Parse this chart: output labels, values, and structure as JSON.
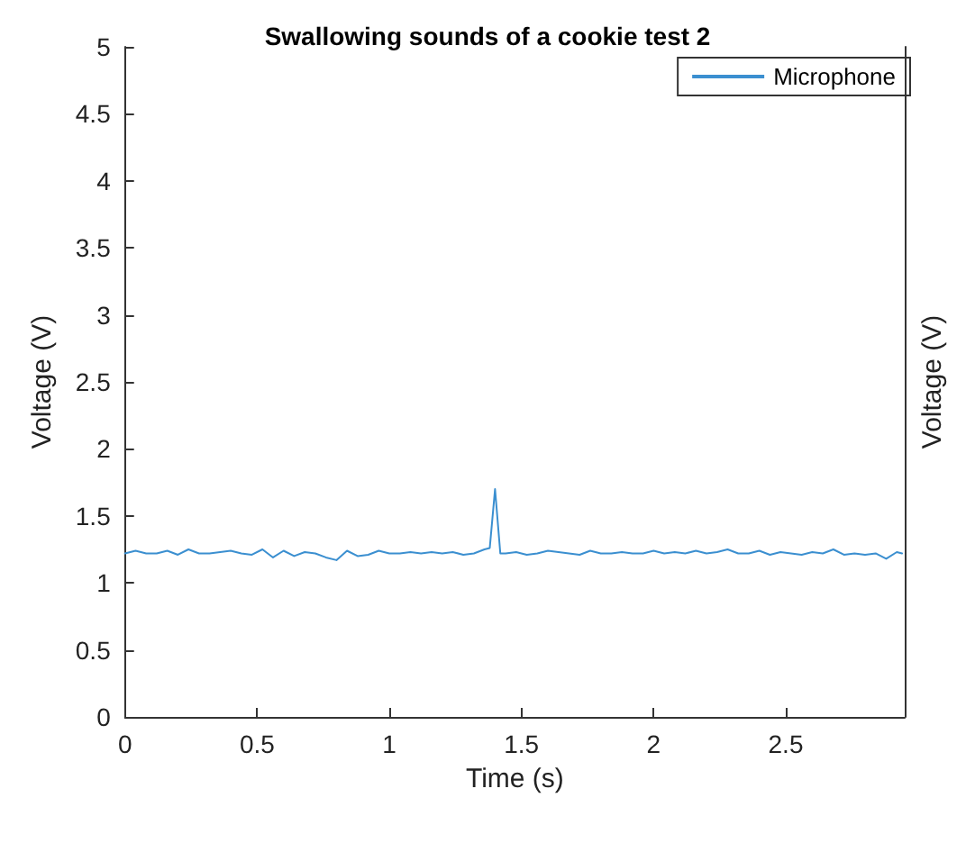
{
  "chart_data": {
    "type": "line",
    "title": "Swallowing sounds of a cookie test 2",
    "xlabel": "Time (s)",
    "ylabel": "Voltage (V)",
    "y2label": "Voltage (V)",
    "x": [
      0,
      0.04,
      0.08,
      0.12,
      0.16,
      0.2,
      0.24,
      0.28,
      0.32,
      0.36,
      0.4,
      0.44,
      0.48,
      0.52,
      0.56,
      0.6,
      0.64,
      0.68,
      0.72,
      0.76,
      0.8,
      0.84,
      0.88,
      0.92,
      0.96,
      1.0,
      1.04,
      1.08,
      1.12,
      1.16,
      1.2,
      1.24,
      1.28,
      1.32,
      1.36,
      1.38,
      1.4,
      1.42,
      1.44,
      1.48,
      1.52,
      1.56,
      1.6,
      1.64,
      1.68,
      1.72,
      1.76,
      1.8,
      1.84,
      1.88,
      1.92,
      1.96,
      2.0,
      2.04,
      2.08,
      2.12,
      2.16,
      2.2,
      2.24,
      2.28,
      2.32,
      2.36,
      2.4,
      2.44,
      2.48,
      2.52,
      2.56,
      2.6,
      2.64,
      2.68,
      2.72,
      2.76,
      2.8,
      2.84,
      2.88,
      2.92,
      2.94
    ],
    "series": [
      {
        "name": "Microphone",
        "color": "#3b8fd0",
        "values": [
          1.22,
          1.24,
          1.22,
          1.22,
          1.24,
          1.21,
          1.25,
          1.22,
          1.22,
          1.23,
          1.24,
          1.22,
          1.21,
          1.25,
          1.19,
          1.24,
          1.2,
          1.23,
          1.22,
          1.19,
          1.17,
          1.24,
          1.2,
          1.21,
          1.24,
          1.22,
          1.22,
          1.23,
          1.22,
          1.23,
          1.22,
          1.23,
          1.21,
          1.22,
          1.25,
          1.26,
          1.7,
          1.22,
          1.22,
          1.23,
          1.21,
          1.22,
          1.24,
          1.23,
          1.22,
          1.21,
          1.24,
          1.22,
          1.22,
          1.23,
          1.22,
          1.22,
          1.24,
          1.22,
          1.23,
          1.22,
          1.24,
          1.22,
          1.23,
          1.25,
          1.22,
          1.22,
          1.24,
          1.21,
          1.23,
          1.22,
          1.21,
          1.23,
          1.22,
          1.25,
          1.21,
          1.22,
          1.21,
          1.22,
          1.18,
          1.23,
          1.22
        ]
      }
    ],
    "xlim": [
      0,
      2.95
    ],
    "xticks": [
      0,
      0.5,
      1,
      1.5,
      2,
      2.5
    ],
    "ylim": [
      0,
      5
    ],
    "yticks": [
      0,
      0.5,
      1,
      1.5,
      2,
      2.5,
      3,
      3.5,
      4,
      4.5,
      5
    ],
    "grid": false,
    "legend": "top right",
    "marker": "none",
    "line_style": "solid"
  }
}
